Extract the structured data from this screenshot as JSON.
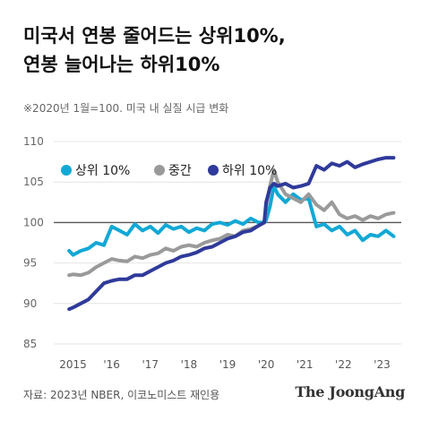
{
  "header": {
    "title_line1": "미국서 연봉 줄어드는 상위10%,",
    "title_line2": "연봉 늘어나는 하위10%",
    "subtitle": "※2020년 1월=100. 미국 내 실질 시급 변화"
  },
  "footer": {
    "source": "자료: 2023년 NBER, 이코노미스트 재인용",
    "brand": "The JoongAng"
  },
  "chart_data": {
    "type": "line",
    "title": "",
    "xlabel": "",
    "ylabel": "",
    "x_ticks": [
      {
        "value": 2015.0,
        "label": "2015"
      },
      {
        "value": 2016.0,
        "label": "'16"
      },
      {
        "value": 2017.0,
        "label": "'17"
      },
      {
        "value": 2018.0,
        "label": "'18"
      },
      {
        "value": 2019.0,
        "label": "'19"
      },
      {
        "value": 2020.0,
        "label": "'20"
      },
      {
        "value": 2021.0,
        "label": "'21"
      },
      {
        "value": 2022.0,
        "label": "'22"
      },
      {
        "value": 2023.0,
        "label": "'23"
      }
    ],
    "xlim": [
      2014.5,
      2023.5
    ],
    "ylim": [
      85,
      110
    ],
    "y_ticks": [
      85,
      90,
      95,
      100,
      105,
      110
    ],
    "reference_line": 100,
    "grid": true,
    "legend_position": "top-left",
    "series": [
      {
        "name": "상위 10%",
        "color": "#12a8d5",
        "x": [
          2014.9,
          2015.0,
          2015.2,
          2015.4,
          2015.6,
          2015.8,
          2016.0,
          2016.2,
          2016.4,
          2016.6,
          2016.8,
          2017.0,
          2017.2,
          2017.4,
          2017.6,
          2017.8,
          2018.0,
          2018.2,
          2018.4,
          2018.6,
          2018.8,
          2019.0,
          2019.2,
          2019.4,
          2019.6,
          2019.8,
          2019.95,
          2020.0,
          2020.1,
          2020.2,
          2020.3,
          2020.5,
          2020.7,
          2020.9,
          2021.1,
          2021.3,
          2021.5,
          2021.7,
          2021.9,
          2022.1,
          2022.3,
          2022.5,
          2022.7,
          2022.9,
          2023.1,
          2023.3
        ],
        "values": [
          96.5,
          96.0,
          96.5,
          96.8,
          97.5,
          97.2,
          99.5,
          99.0,
          98.5,
          99.8,
          99.0,
          99.5,
          98.7,
          99.7,
          99.2,
          99.5,
          98.8,
          99.3,
          99.0,
          99.8,
          100.0,
          99.7,
          100.2,
          99.8,
          100.5,
          100.0,
          100.0,
          100.3,
          102.0,
          104.5,
          103.5,
          102.5,
          103.5,
          102.8,
          103.0,
          99.5,
          99.8,
          99.0,
          99.5,
          98.5,
          99.0,
          97.8,
          98.5,
          98.3,
          99.0,
          98.3
        ]
      },
      {
        "name": "중간",
        "color": "#9a9a9a",
        "x": [
          2014.9,
          2015.0,
          2015.2,
          2015.4,
          2015.6,
          2015.8,
          2016.0,
          2016.2,
          2016.4,
          2016.6,
          2016.8,
          2017.0,
          2017.2,
          2017.4,
          2017.6,
          2017.8,
          2018.0,
          2018.2,
          2018.4,
          2018.6,
          2018.8,
          2019.0,
          2019.2,
          2019.4,
          2019.6,
          2019.8,
          2019.95,
          2020.0,
          2020.1,
          2020.2,
          2020.3,
          2020.5,
          2020.7,
          2020.9,
          2021.1,
          2021.3,
          2021.5,
          2021.7,
          2021.9,
          2022.1,
          2022.3,
          2022.5,
          2022.7,
          2022.9,
          2023.1,
          2023.3
        ],
        "values": [
          93.5,
          93.6,
          93.5,
          93.8,
          94.5,
          95.0,
          95.5,
          95.3,
          95.2,
          95.8,
          95.6,
          96.0,
          96.2,
          96.8,
          96.5,
          97.0,
          97.2,
          97.0,
          97.5,
          97.8,
          98.0,
          98.5,
          98.3,
          99.0,
          99.2,
          99.6,
          100.0,
          102.0,
          104.5,
          106.5,
          105.0,
          103.5,
          103.0,
          102.5,
          103.5,
          102.2,
          101.5,
          102.5,
          101.0,
          100.5,
          100.8,
          100.3,
          100.8,
          100.5,
          101.0,
          101.2
        ]
      },
      {
        "name": "하위 10%",
        "color": "#2f3a9a",
        "x": [
          2014.9,
          2015.0,
          2015.2,
          2015.4,
          2015.6,
          2015.8,
          2016.0,
          2016.2,
          2016.4,
          2016.6,
          2016.8,
          2017.0,
          2017.2,
          2017.4,
          2017.6,
          2017.8,
          2018.0,
          2018.2,
          2018.4,
          2018.6,
          2018.8,
          2019.0,
          2019.2,
          2019.4,
          2019.6,
          2019.8,
          2019.95,
          2020.0,
          2020.1,
          2020.2,
          2020.3,
          2020.5,
          2020.7,
          2020.9,
          2021.1,
          2021.3,
          2021.5,
          2021.7,
          2021.9,
          2022.1,
          2022.3,
          2022.5,
          2022.7,
          2022.9,
          2023.1,
          2023.3
        ],
        "values": [
          89.3,
          89.5,
          90.0,
          90.5,
          91.5,
          92.5,
          92.8,
          93.0,
          93.0,
          93.5,
          93.5,
          94.0,
          94.5,
          95.0,
          95.3,
          95.8,
          96.0,
          96.3,
          96.8,
          97.0,
          97.5,
          98.0,
          98.3,
          98.8,
          99.0,
          99.6,
          100.0,
          102.5,
          104.3,
          104.8,
          104.5,
          104.8,
          104.3,
          104.5,
          104.8,
          107.0,
          106.5,
          107.3,
          107.0,
          107.5,
          106.8,
          107.2,
          107.5,
          107.8,
          108.0,
          108.0
        ]
      }
    ]
  }
}
